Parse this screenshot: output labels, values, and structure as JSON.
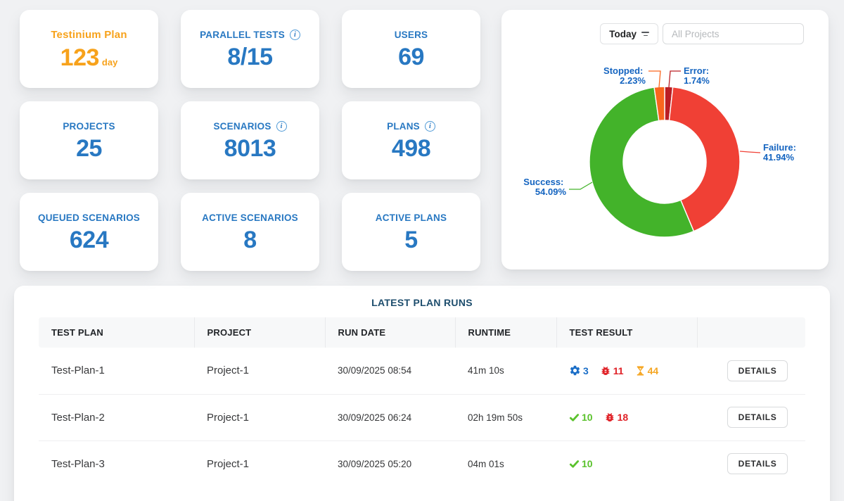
{
  "stats": [
    {
      "label": "Testinium Plan",
      "value": "123",
      "suffix": "day",
      "accent": "orange",
      "info": false
    },
    {
      "label": "PARALLEL TESTS",
      "value": "8/15",
      "info": true
    },
    {
      "label": "USERS",
      "value": "69",
      "info": false
    },
    {
      "label": "PROJECTS",
      "value": "25",
      "info": false
    },
    {
      "label": "SCENARIOS",
      "value": "8013",
      "info": true
    },
    {
      "label": "PLANS",
      "value": "498",
      "info": true
    },
    {
      "label": "QUEUED SCENARIOS",
      "value": "624",
      "info": false
    },
    {
      "label": "ACTIVE SCENARIOS",
      "value": "8",
      "info": false
    },
    {
      "label": "ACTIVE PLANS",
      "value": "5",
      "info": false
    }
  ],
  "chart_card": {
    "range_button": "Today",
    "project_placeholder": "All Projects"
  },
  "chart_data": {
    "type": "pie",
    "donut": true,
    "unit": "%",
    "start": "top",
    "direction": "clockwise",
    "draw_order": [
      "Error",
      "Failure",
      "Success",
      "Stopped"
    ],
    "label_color": "#1464c0",
    "slices": [
      {
        "label": "Success",
        "value": 54.09,
        "color": "#43b32a"
      },
      {
        "label": "Failure",
        "value": 41.94,
        "color": "#f04035"
      },
      {
        "label": "Stopped",
        "value": 2.23,
        "color": "#f9661e"
      },
      {
        "label": "Error",
        "value": 1.74,
        "color": "#ba1e24"
      }
    ]
  },
  "table": {
    "title": "LATEST PLAN RUNS",
    "columns": [
      "TEST PLAN",
      "PROJECT",
      "RUN DATE",
      "RUNTIME",
      "TEST RESULT",
      ""
    ],
    "details_label": "DETAILS",
    "rows": [
      {
        "test_plan": "Test-Plan-1",
        "project": "Project-1",
        "run_date": "30/09/2025 08:54",
        "runtime": "41m 10s",
        "results": [
          {
            "icon": "gear",
            "count": 3,
            "color": "#1b6ec7"
          },
          {
            "icon": "bug",
            "count": 11,
            "color": "#e02228"
          },
          {
            "icon": "hourglass",
            "count": 44,
            "color": "#f5a623"
          }
        ]
      },
      {
        "test_plan": "Test-Plan-2",
        "project": "Project-1",
        "run_date": "30/09/2025 06:24",
        "runtime": "02h 19m 50s",
        "results": [
          {
            "icon": "check",
            "count": 10,
            "color": "#5bc22d"
          },
          {
            "icon": "bug",
            "count": 18,
            "color": "#e02228"
          }
        ]
      },
      {
        "test_plan": "Test-Plan-3",
        "project": "Project-1",
        "run_date": "30/09/2025 05:20",
        "runtime": "04m 01s",
        "results": [
          {
            "icon": "check",
            "count": 10,
            "color": "#5bc22d"
          }
        ]
      }
    ]
  }
}
